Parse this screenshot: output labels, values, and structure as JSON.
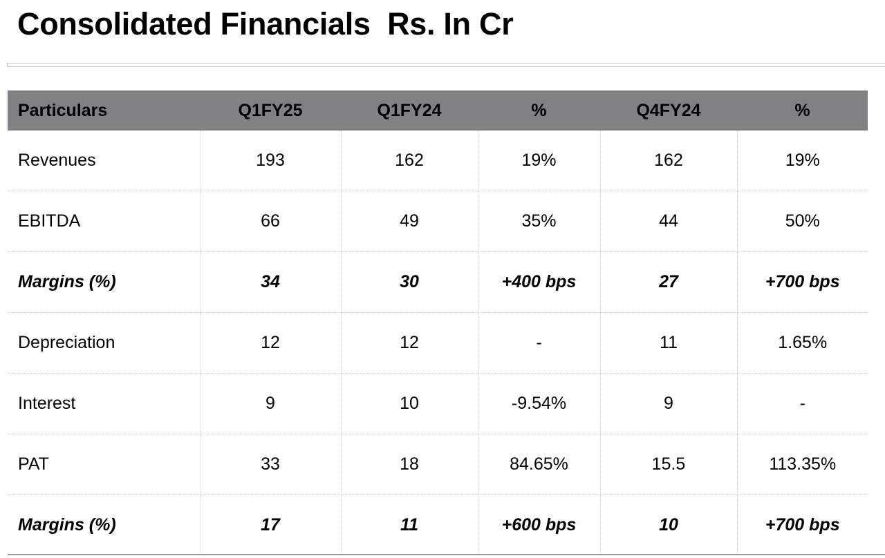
{
  "title": "Consolidated Financials  Rs. In Cr",
  "table": {
    "headers": [
      "Particulars",
      "Q1FY25",
      "Q1FY24",
      "%",
      "Q4FY24",
      "%"
    ],
    "rows": [
      {
        "label": "Revenues",
        "cells": [
          "193",
          "162",
          "19%",
          "162",
          "19%"
        ],
        "emphasis": false
      },
      {
        "label": "EBITDA",
        "cells": [
          "66",
          "49",
          "35%",
          "44",
          "50%"
        ],
        "emphasis": false
      },
      {
        "label": "Margins (%)",
        "cells": [
          "34",
          "30",
          "+400 bps",
          "27",
          "+700 bps"
        ],
        "emphasis": true
      },
      {
        "label": "Depreciation",
        "cells": [
          "12",
          "12",
          "-",
          "11",
          "1.65%"
        ],
        "emphasis": false
      },
      {
        "label": "Interest",
        "cells": [
          "9",
          "10",
          "-9.54%",
          "9",
          "-"
        ],
        "emphasis": false
      },
      {
        "label": "PAT",
        "cells": [
          "33",
          "18",
          "84.65%",
          "15.5",
          "113.35%"
        ],
        "emphasis": false
      },
      {
        "label": "Margins (%)",
        "cells": [
          "17",
          "11",
          "+600 bps",
          "10",
          "+700 bps"
        ],
        "emphasis": true
      }
    ]
  },
  "colors": {
    "header_background": "#808085",
    "grid_line": "#cfcfcf"
  }
}
